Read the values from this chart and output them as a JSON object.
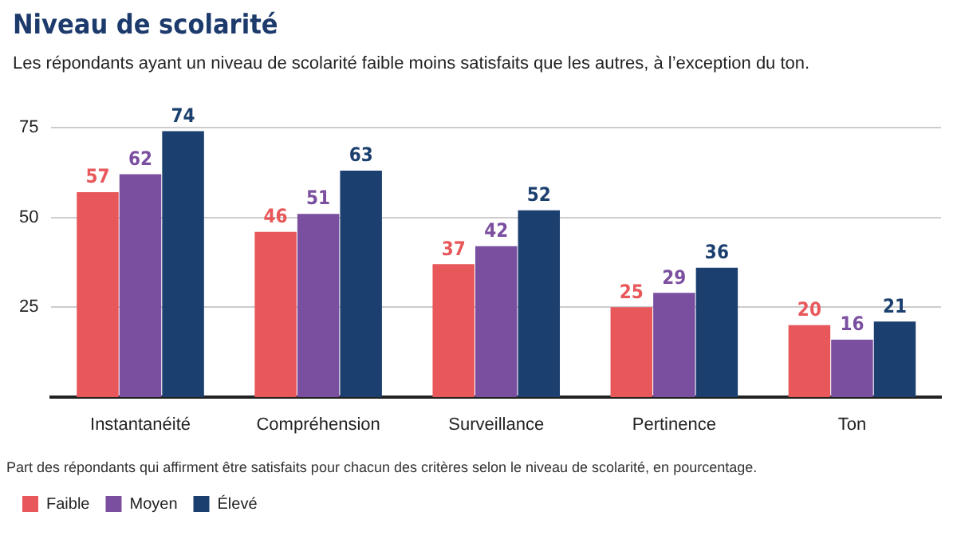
{
  "chart_data": {
    "type": "bar",
    "title": "Niveau de scolarité",
    "subtitle": "Les répondants ayant un niveau de scolarité faible moins satisfaits que les autres, à l’exception du ton.",
    "categories": [
      "Instantanéité",
      "Compréhension",
      "Surveillance",
      "Pertinence",
      "Ton"
    ],
    "series": [
      {
        "name": "Faible",
        "color": "#e8575a",
        "values": [
          57,
          46,
          37,
          25,
          20
        ]
      },
      {
        "name": "Moyen",
        "color": "#7b4fa0",
        "values": [
          62,
          51,
          42,
          29,
          16
        ]
      },
      {
        "name": "Élevé",
        "color": "#1b3f6e",
        "values": [
          74,
          63,
          52,
          36,
          21
        ]
      }
    ],
    "ylim": [
      0,
      75
    ],
    "yticks": [
      25,
      50,
      75
    ],
    "grid": "y",
    "legend": "bottom",
    "data_labels": true,
    "annotations": [
      "Part des répondants qui affirment être satisfaits pour chacun des critères selon le niveau de scolarité, en pourcentage."
    ]
  }
}
